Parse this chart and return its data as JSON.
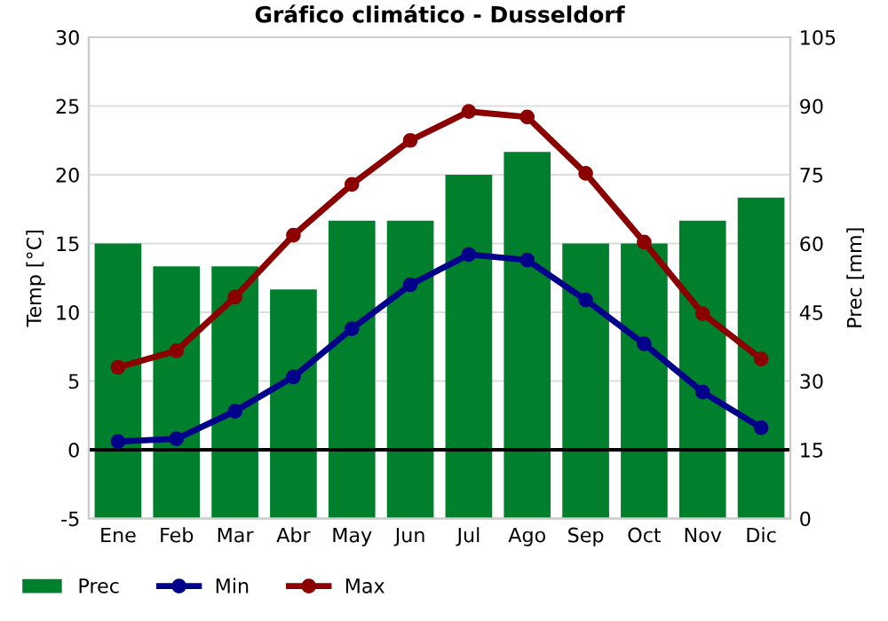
{
  "chart_data": {
    "type": "bar",
    "title": "Gráfico climático - Dusseldorf",
    "ylabel": "Temp [°C]",
    "y2label": "Prec [mm]",
    "categories": [
      "Ene",
      "Feb",
      "Mar",
      "Abr",
      "May",
      "Jun",
      "Jul",
      "Ago",
      "Sep",
      "Oct",
      "Nov",
      "Dic"
    ],
    "series": [
      {
        "name": "Prec",
        "axis": "y2",
        "color": "#007f2d",
        "values": [
          60,
          55,
          55,
          50,
          65,
          65,
          75,
          80,
          60,
          60,
          65,
          70
        ]
      },
      {
        "name": "Min",
        "type": "line",
        "color": "#00008b",
        "values": [
          0.6,
          0.8,
          2.8,
          5.3,
          8.8,
          12,
          14.2,
          13.8,
          10.9,
          7.7,
          4.2,
          1.6
        ]
      },
      {
        "name": "Max",
        "type": "line",
        "color": "#8b0000",
        "values": [
          6,
          7.2,
          11.1,
          15.6,
          19.3,
          22.5,
          24.6,
          24.2,
          20.1,
          15.1,
          9.9,
          6.6
        ]
      }
    ],
    "ylim": [
      -5,
      30
    ],
    "yticks": [
      -5,
      0,
      5,
      10,
      15,
      20,
      25,
      30
    ],
    "y2lim": [
      0,
      105
    ],
    "y2ticks": [
      0,
      15,
      30,
      45,
      60,
      75,
      90,
      105
    ],
    "ref_lines": [
      {
        "axis": "y",
        "value": 0,
        "color": "#000000"
      }
    ],
    "grid": "y",
    "legend": "bottom",
    "marker": "circle",
    "line_style": "solid"
  }
}
